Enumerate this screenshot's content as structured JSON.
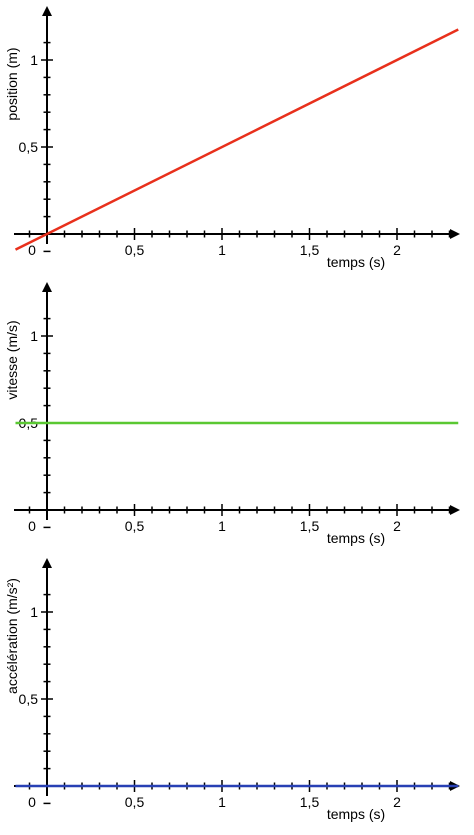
{
  "chart_data": [
    {
      "type": "line",
      "title": "",
      "xlabel": "temps (s)",
      "ylabel": "position (m)",
      "xlim": [
        -0.18,
        2.35
      ],
      "ylim": [
        -0.1,
        1.3
      ],
      "x_ticks": [
        0.5,
        1,
        1.5,
        2
      ],
      "x_tick_labels": [
        "0,5",
        "1",
        "1,5",
        "2"
      ],
      "origin_label": "0",
      "y_ticks": [
        0.5,
        1
      ],
      "y_tick_labels": [
        "0,5",
        "1"
      ],
      "grid": false,
      "color": "#e8301c",
      "series": [
        {
          "x": [
            -0.18,
            2.35
          ],
          "y": [
            -0.09,
            1.175
          ]
        }
      ]
    },
    {
      "type": "line",
      "title": "",
      "xlabel": "temps (s)",
      "ylabel": "vitesse (m/s)",
      "xlim": [
        -0.18,
        2.35
      ],
      "ylim": [
        -0.1,
        1.3
      ],
      "x_ticks": [
        0.5,
        1,
        1.5,
        2
      ],
      "x_tick_labels": [
        "0,5",
        "1",
        "1,5",
        "2"
      ],
      "origin_label": "0",
      "y_ticks": [
        0.5,
        1
      ],
      "y_tick_labels": [
        "0,5",
        "1"
      ],
      "grid": false,
      "color": "#5ac832",
      "series": [
        {
          "x": [
            -0.18,
            2.35
          ],
          "y": [
            0.5,
            0.5
          ]
        }
      ]
    },
    {
      "type": "line",
      "title": "",
      "xlabel": "temps (s)",
      "ylabel": "accélération (m/s²)",
      "xlim": [
        -0.18,
        2.35
      ],
      "ylim": [
        -0.1,
        1.3
      ],
      "x_ticks": [
        0.5,
        1,
        1.5,
        2
      ],
      "x_tick_labels": [
        "0,5",
        "1",
        "1,5",
        "2"
      ],
      "origin_label": "0",
      "y_ticks": [
        0.5,
        1
      ],
      "y_tick_labels": [
        "0,5",
        "1"
      ],
      "grid": false,
      "color": "#2840b4",
      "series": [
        {
          "x": [
            -0.18,
            2.35
          ],
          "y": [
            0,
            0
          ]
        }
      ]
    }
  ]
}
